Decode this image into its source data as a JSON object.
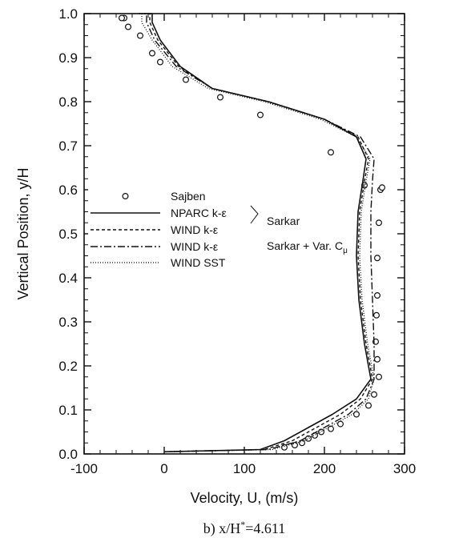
{
  "chart_data": {
    "type": "line",
    "xlabel": "Velocity, U, (m/s)",
    "ylabel": "Vertical Position, y/H",
    "xlim": [
      -100,
      300
    ],
    "ylim": [
      0.0,
      1.0
    ],
    "x_ticks": [
      "-100",
      "0",
      "100",
      "200",
      "300"
    ],
    "y_ticks": [
      "0.0",
      "0.1",
      "0.2",
      "0.3",
      "0.4",
      "0.5",
      "0.6",
      "0.7",
      "0.8",
      "0.9",
      "1.0"
    ],
    "caption": {
      "prefix": "b)  x/H",
      "sup": "*",
      "suffix": "=4.611"
    },
    "legend": {
      "placement": "center-left",
      "group_label_1": "Sarkar",
      "group_label_2_main": "Sarkar + Var. C",
      "group_label_2_sub": "μ"
    },
    "series": [
      {
        "name": "Sajben",
        "style": "markers",
        "x": [
          150,
          163,
          172,
          180,
          188,
          196,
          208,
          220,
          240,
          255,
          262,
          268,
          266,
          264,
          265,
          266,
          266,
          268,
          270,
          272,
          250,
          208,
          120,
          70,
          27,
          -5,
          -15,
          -30,
          -45,
          -50,
          -53
        ],
        "y": [
          0.015,
          0.02,
          0.025,
          0.035,
          0.042,
          0.05,
          0.057,
          0.068,
          0.09,
          0.11,
          0.135,
          0.175,
          0.215,
          0.255,
          0.315,
          0.36,
          0.445,
          0.525,
          0.6,
          0.605,
          0.61,
          0.685,
          0.77,
          0.81,
          0.85,
          0.89,
          0.91,
          0.95,
          0.97,
          0.99,
          0.99
        ]
      },
      {
        "name": "NPARC k-ε",
        "style": "solid",
        "x": [
          0,
          120,
          150,
          180,
          210,
          240,
          258,
          250,
          243,
          240,
          242,
          248,
          252,
          240,
          200,
          130,
          60,
          20,
          -5,
          -15,
          -15,
          -25
        ],
        "y": [
          0.005,
          0.01,
          0.03,
          0.06,
          0.09,
          0.125,
          0.17,
          0.25,
          0.35,
          0.45,
          0.55,
          0.62,
          0.67,
          0.72,
          0.76,
          0.8,
          0.83,
          0.88,
          0.94,
          0.98,
          1.0,
          1.0
        ]
      },
      {
        "name": "WIND k-ε",
        "style": "dashed",
        "x": [
          0,
          125,
          160,
          190,
          220,
          245,
          260,
          252,
          245,
          242,
          244,
          250,
          255,
          242,
          200,
          130,
          60,
          18,
          -8,
          -18,
          -18,
          -28
        ],
        "y": [
          0.005,
          0.01,
          0.03,
          0.06,
          0.09,
          0.125,
          0.17,
          0.25,
          0.35,
          0.45,
          0.55,
          0.62,
          0.67,
          0.72,
          0.76,
          0.8,
          0.83,
          0.88,
          0.94,
          0.98,
          1.0,
          1.0
        ]
      },
      {
        "name": "WIND k-ε",
        "style": "dashdot",
        "x": [
          0,
          130,
          170,
          200,
          230,
          252,
          262,
          262,
          260,
          258,
          258,
          260,
          262,
          245,
          200,
          130,
          60,
          15,
          -12,
          -22,
          -22,
          -32
        ],
        "y": [
          0.005,
          0.01,
          0.03,
          0.06,
          0.09,
          0.125,
          0.17,
          0.25,
          0.35,
          0.45,
          0.55,
          0.62,
          0.67,
          0.72,
          0.76,
          0.8,
          0.83,
          0.88,
          0.94,
          0.98,
          1.0,
          1.0
        ]
      },
      {
        "name": "WIND SST",
        "style": "dotted",
        "x": [
          0,
          135,
          175,
          205,
          235,
          255,
          262,
          254,
          247,
          244,
          246,
          252,
          257,
          240,
          195,
          125,
          55,
          10,
          -15,
          -28,
          -28,
          -38
        ],
        "y": [
          0.005,
          0.01,
          0.03,
          0.06,
          0.09,
          0.125,
          0.17,
          0.25,
          0.35,
          0.45,
          0.55,
          0.62,
          0.67,
          0.72,
          0.76,
          0.8,
          0.83,
          0.88,
          0.94,
          0.98,
          1.0,
          1.0
        ]
      }
    ]
  }
}
